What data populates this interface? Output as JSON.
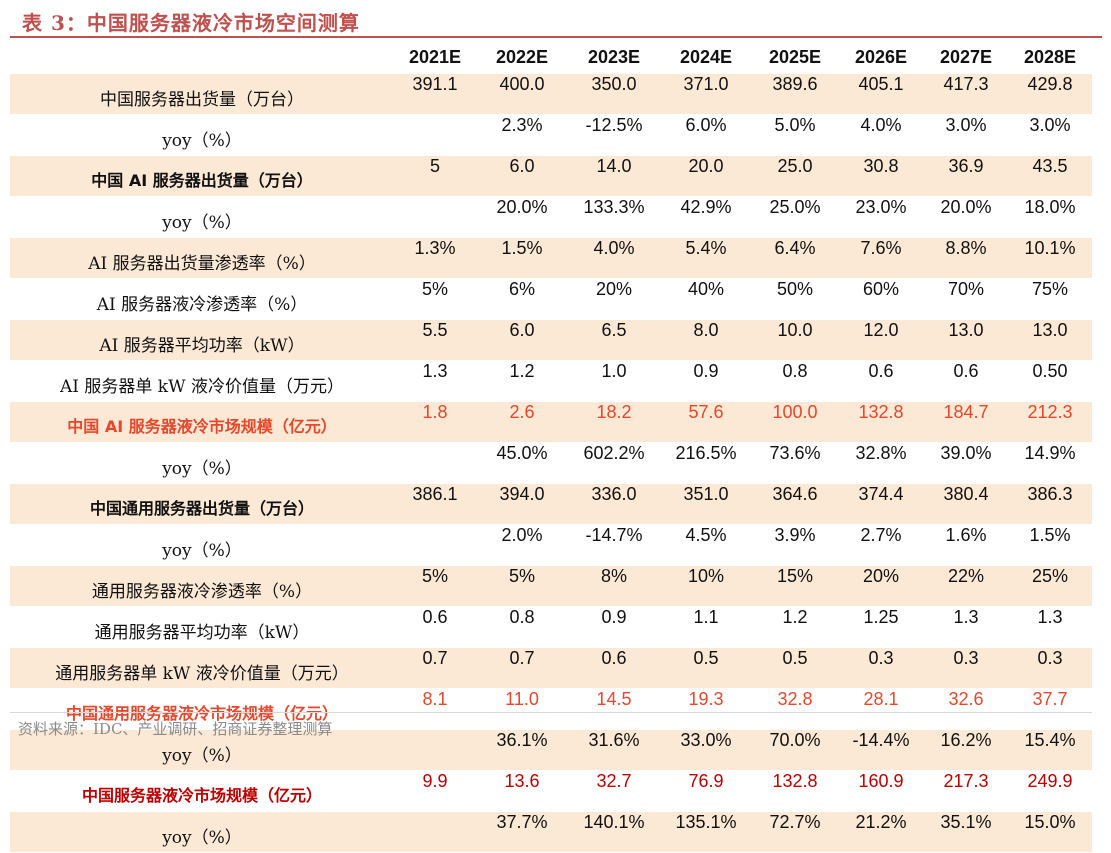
{
  "title": "表 3：中国服务器液冷市场空间测算",
  "columns": [
    "",
    "2021E",
    "2022E",
    "2023E",
    "2024E",
    "2025E",
    "2026E",
    "2027E",
    "2028E"
  ],
  "rows": [
    {
      "label": "中国服务器出货量（万台）",
      "values": [
        "391.1",
        "400.0",
        "350.0",
        "371.0",
        "389.6",
        "405.1",
        "417.3",
        "429.8"
      ],
      "style": "shade"
    },
    {
      "label": "yoy（%）",
      "values": [
        "",
        "2.3%",
        "-12.5%",
        "6.0%",
        "5.0%",
        "4.0%",
        "3.0%",
        "3.0%"
      ],
      "style": ""
    },
    {
      "label": "中国 AI 服务器出货量（万台）",
      "values": [
        "5",
        "6.0",
        "14.0",
        "20.0",
        "25.0",
        "30.8",
        "36.9",
        "43.5"
      ],
      "style": "shade bold"
    },
    {
      "label": "yoy（%）",
      "values": [
        "",
        "20.0%",
        "133.3%",
        "42.9%",
        "25.0%",
        "23.0%",
        "20.0%",
        "18.0%"
      ],
      "style": ""
    },
    {
      "label": "AI 服务器出货量渗透率（%）",
      "values": [
        "1.3%",
        "1.5%",
        "4.0%",
        "5.4%",
        "6.4%",
        "7.6%",
        "8.8%",
        "10.1%"
      ],
      "style": "shade"
    },
    {
      "label": "AI 服务器液冷渗透率（%）",
      "values": [
        "5%",
        "6%",
        "20%",
        "40%",
        "50%",
        "60%",
        "70%",
        "75%"
      ],
      "style": ""
    },
    {
      "label": "AI 服务器平均功率（kW）",
      "values": [
        "5.5",
        "6.0",
        "6.5",
        "8.0",
        "10.0",
        "12.0",
        "13.0",
        "13.0"
      ],
      "style": "shade"
    },
    {
      "label": "AI 服务器单 kW 液冷价值量（万元）",
      "values": [
        "1.3",
        "1.2",
        "1.0",
        "0.9",
        "0.8",
        "0.6",
        "0.6",
        "0.50"
      ],
      "style": ""
    },
    {
      "label": "中国 AI 服务器液冷市场规模（亿元）",
      "values": [
        "1.8",
        "2.6",
        "18.2",
        "57.6",
        "100.0",
        "132.8",
        "184.7",
        "212.3"
      ],
      "style": "shade red"
    },
    {
      "label": "yoy（%）",
      "values": [
        "",
        "45.0%",
        "602.2%",
        "216.5%",
        "73.6%",
        "32.8%",
        "39.0%",
        "14.9%"
      ],
      "style": ""
    },
    {
      "label": "中国通用服务器出货量（万台）",
      "values": [
        "386.1",
        "394.0",
        "336.0",
        "351.0",
        "364.6",
        "374.4",
        "380.4",
        "386.3"
      ],
      "style": "shade bold"
    },
    {
      "label": "yoy（%）",
      "values": [
        "",
        "2.0%",
        "-14.7%",
        "4.5%",
        "3.9%",
        "2.7%",
        "1.6%",
        "1.5%"
      ],
      "style": ""
    },
    {
      "label": "通用服务器液冷渗透率（%）",
      "values": [
        "5%",
        "5%",
        "8%",
        "10%",
        "15%",
        "20%",
        "22%",
        "25%"
      ],
      "style": "shade"
    },
    {
      "label": "通用服务器平均功率（kW）",
      "values": [
        "0.6",
        "0.8",
        "0.9",
        "1.1",
        "1.2",
        "1.25",
        "1.3",
        "1.3"
      ],
      "style": ""
    },
    {
      "label": "通用服务器单 kW 液冷价值量（万元）",
      "values": [
        "0.7",
        "0.7",
        "0.6",
        "0.5",
        "0.5",
        "0.3",
        "0.3",
        "0.3"
      ],
      "style": "shade"
    },
    {
      "label": "中国通用服务器液冷市场规模（亿元）",
      "values": [
        "8.1",
        "11.0",
        "14.5",
        "19.3",
        "32.8",
        "28.1",
        "32.6",
        "37.7"
      ],
      "style": "red"
    },
    {
      "label": "yoy（%）",
      "values": [
        "",
        "36.1%",
        "31.6%",
        "33.0%",
        "70.0%",
        "-14.4%",
        "16.2%",
        "15.4%"
      ],
      "style": "shade"
    },
    {
      "label": "中国服务器液冷市场规模（亿元）",
      "values": [
        "9.9",
        "13.6",
        "32.7",
        "76.9",
        "132.8",
        "160.9",
        "217.3",
        "249.9"
      ],
      "style": "dark"
    },
    {
      "label": "yoy（%）",
      "values": [
        "",
        "37.7%",
        "140.1%",
        "135.1%",
        "72.7%",
        "21.2%",
        "35.1%",
        "15.0%"
      ],
      "style": "shade"
    }
  ],
  "source": "资料来源：IDC、产业调研、招商证券整理测算"
}
